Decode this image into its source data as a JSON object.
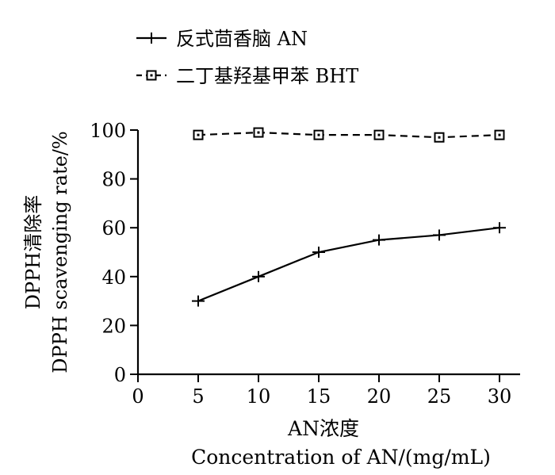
{
  "chart_data": {
    "type": "line",
    "xlabel_cn": "AN浓度",
    "xlabel_en": "Concentration of AN/(mg/mL)",
    "ylabel_cn": "DPPH清除率",
    "ylabel_en": "DPPH scavenging rate/%",
    "xlim": [
      0,
      30
    ],
    "ylim": [
      0,
      100
    ],
    "x_ticks": [
      0,
      5,
      10,
      15,
      20,
      25,
      30
    ],
    "y_ticks": [
      0,
      20,
      40,
      60,
      80,
      100
    ],
    "legend_position": "top",
    "series": [
      {
        "name": "反式茴香脑 AN",
        "marker": "plus",
        "line_style": "solid",
        "x": [
          5,
          10,
          15,
          20,
          25,
          30
        ],
        "y": [
          30,
          40,
          50,
          55,
          57,
          60
        ]
      },
      {
        "name": "二丁基羟基甲苯 BHT",
        "marker": "square",
        "line_style": "dashed",
        "x": [
          5,
          10,
          15,
          20,
          25,
          30
        ],
        "y": [
          98,
          99,
          98,
          98,
          97,
          98
        ]
      }
    ],
    "colors": {
      "line": "#000000",
      "background": "#ffffff"
    }
  }
}
